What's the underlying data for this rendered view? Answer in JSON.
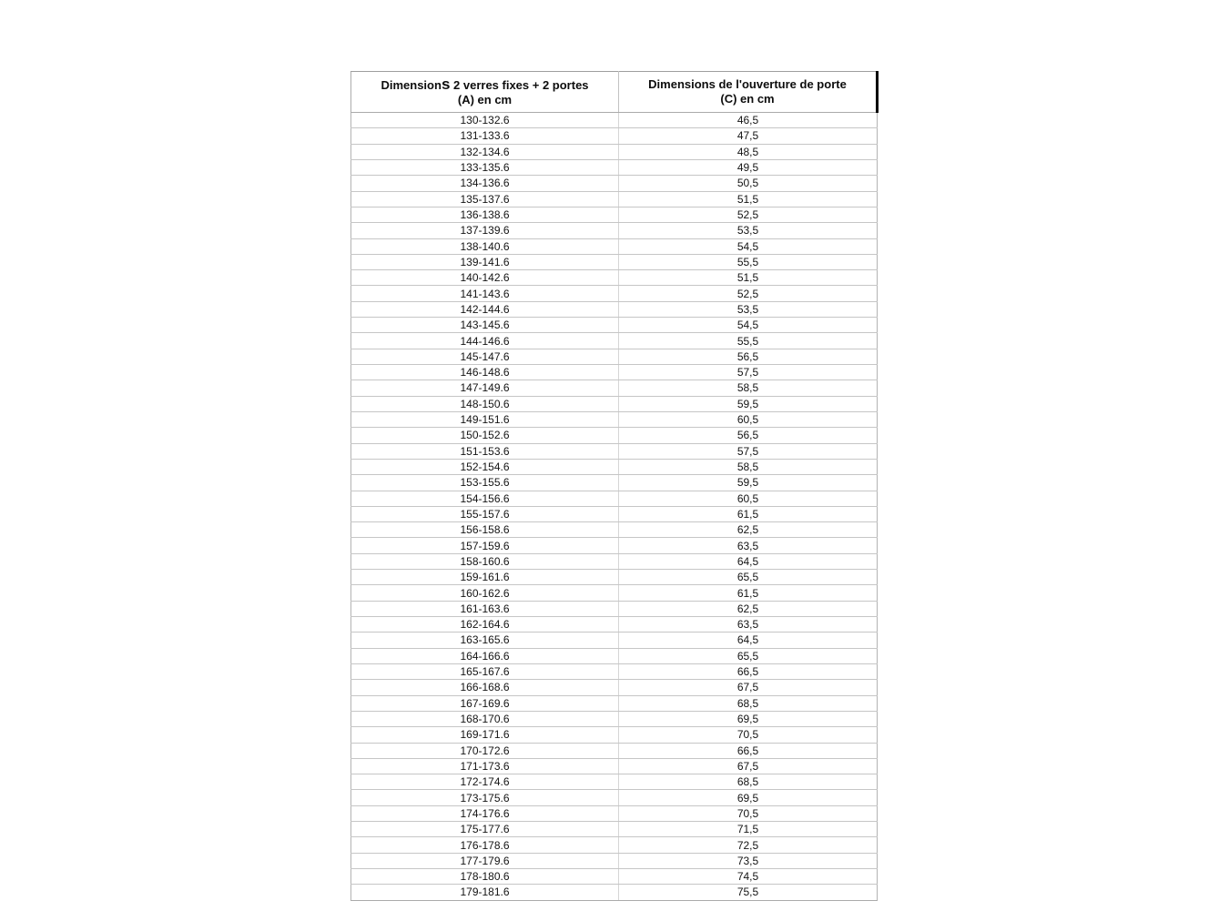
{
  "colors": {
    "background": "#ffffff",
    "text": "#111111",
    "grid_border": "#c6c6c6",
    "outer_border": "#ababab",
    "header_accent_border": "#000000"
  },
  "table": {
    "header_a": {
      "line1_pre": "Dimension",
      "line1_s": "s",
      "line1_post": " 2 verres fixes + 2 portes",
      "line2": "(A) en cm"
    },
    "header_c": {
      "line1": "Dimensions de l'ouverture de porte",
      "line2": "(C) en cm"
    },
    "rows": [
      {
        "a": "130-132.6",
        "c": "46,5"
      },
      {
        "a": "131-133.6",
        "c": "47,5"
      },
      {
        "a": "132-134.6",
        "c": "48,5"
      },
      {
        "a": "133-135.6",
        "c": "49,5"
      },
      {
        "a": "134-136.6",
        "c": "50,5"
      },
      {
        "a": "135-137.6",
        "c": "51,5"
      },
      {
        "a": "136-138.6",
        "c": "52,5"
      },
      {
        "a": "137-139.6",
        "c": "53,5"
      },
      {
        "a": "138-140.6",
        "c": "54,5"
      },
      {
        "a": "139-141.6",
        "c": "55,5"
      },
      {
        "a": "140-142.6",
        "c": "51,5"
      },
      {
        "a": "141-143.6",
        "c": "52,5"
      },
      {
        "a": "142-144.6",
        "c": "53,5"
      },
      {
        "a": "143-145.6",
        "c": "54,5"
      },
      {
        "a": "144-146.6",
        "c": "55,5"
      },
      {
        "a": "145-147.6",
        "c": "56,5"
      },
      {
        "a": "146-148.6",
        "c": "57,5"
      },
      {
        "a": "147-149.6",
        "c": "58,5"
      },
      {
        "a": "148-150.6",
        "c": "59,5"
      },
      {
        "a": "149-151.6",
        "c": "60,5"
      },
      {
        "a": "150-152.6",
        "c": "56,5"
      },
      {
        "a": "151-153.6",
        "c": "57,5"
      },
      {
        "a": "152-154.6",
        "c": "58,5"
      },
      {
        "a": "153-155.6",
        "c": "59,5"
      },
      {
        "a": "154-156.6",
        "c": "60,5"
      },
      {
        "a": "155-157.6",
        "c": "61,5"
      },
      {
        "a": "156-158.6",
        "c": "62,5"
      },
      {
        "a": "157-159.6",
        "c": "63,5"
      },
      {
        "a": "158-160.6",
        "c": "64,5"
      },
      {
        "a": "159-161.6",
        "c": "65,5"
      },
      {
        "a": "160-162.6",
        "c": "61,5"
      },
      {
        "a": "161-163.6",
        "c": "62,5"
      },
      {
        "a": "162-164.6",
        "c": "63,5"
      },
      {
        "a": "163-165.6",
        "c": "64,5"
      },
      {
        "a": "164-166.6",
        "c": "65,5"
      },
      {
        "a": "165-167.6",
        "c": "66,5"
      },
      {
        "a": "166-168.6",
        "c": "67,5"
      },
      {
        "a": "167-169.6",
        "c": "68,5"
      },
      {
        "a": "168-170.6",
        "c": "69,5"
      },
      {
        "a": "169-171.6",
        "c": "70,5"
      },
      {
        "a": "170-172.6",
        "c": "66,5"
      },
      {
        "a": "171-173.6",
        "c": "67,5"
      },
      {
        "a": "172-174.6",
        "c": "68,5"
      },
      {
        "a": "173-175.6",
        "c": "69,5"
      },
      {
        "a": "174-176.6",
        "c": "70,5"
      },
      {
        "a": "175-177.6",
        "c": "71,5"
      },
      {
        "a": "176-178.6",
        "c": "72,5"
      },
      {
        "a": "177-179.6",
        "c": "73,5"
      },
      {
        "a": "178-180.6",
        "c": "74,5"
      },
      {
        "a": "179-181.6",
        "c": "75,5"
      }
    ]
  }
}
